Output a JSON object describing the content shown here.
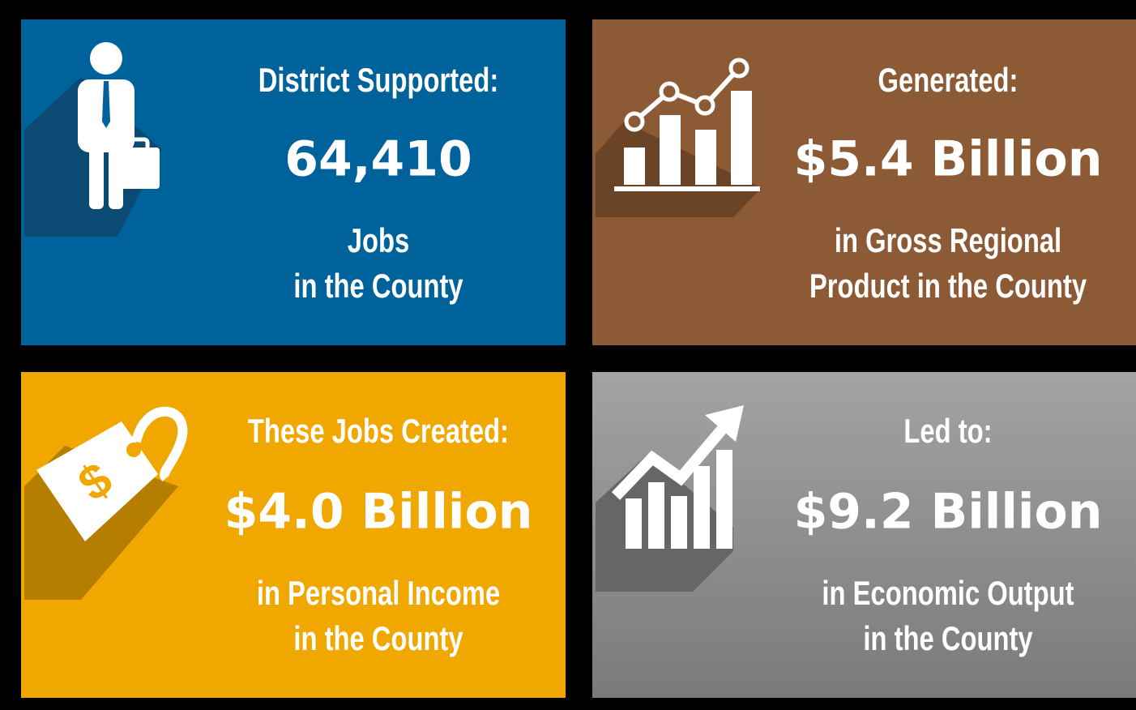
{
  "tiles": [
    {
      "heading": "District Supported:",
      "figure": "64,410",
      "lines": [
        "Jobs",
        "in the County"
      ]
    },
    {
      "heading": "Generated:",
      "figure": "$5.4 Billion",
      "lines": [
        "in Gross Regional",
        "Product in the County"
      ]
    },
    {
      "heading": "These Jobs Created:",
      "figure": "$4.0 Billion",
      "lines": [
        "in Personal Income",
        "in the County"
      ]
    },
    {
      "heading": "Led to:",
      "figure": "$9.2 Billion",
      "lines": [
        "in Economic Output",
        "in the County"
      ]
    }
  ]
}
